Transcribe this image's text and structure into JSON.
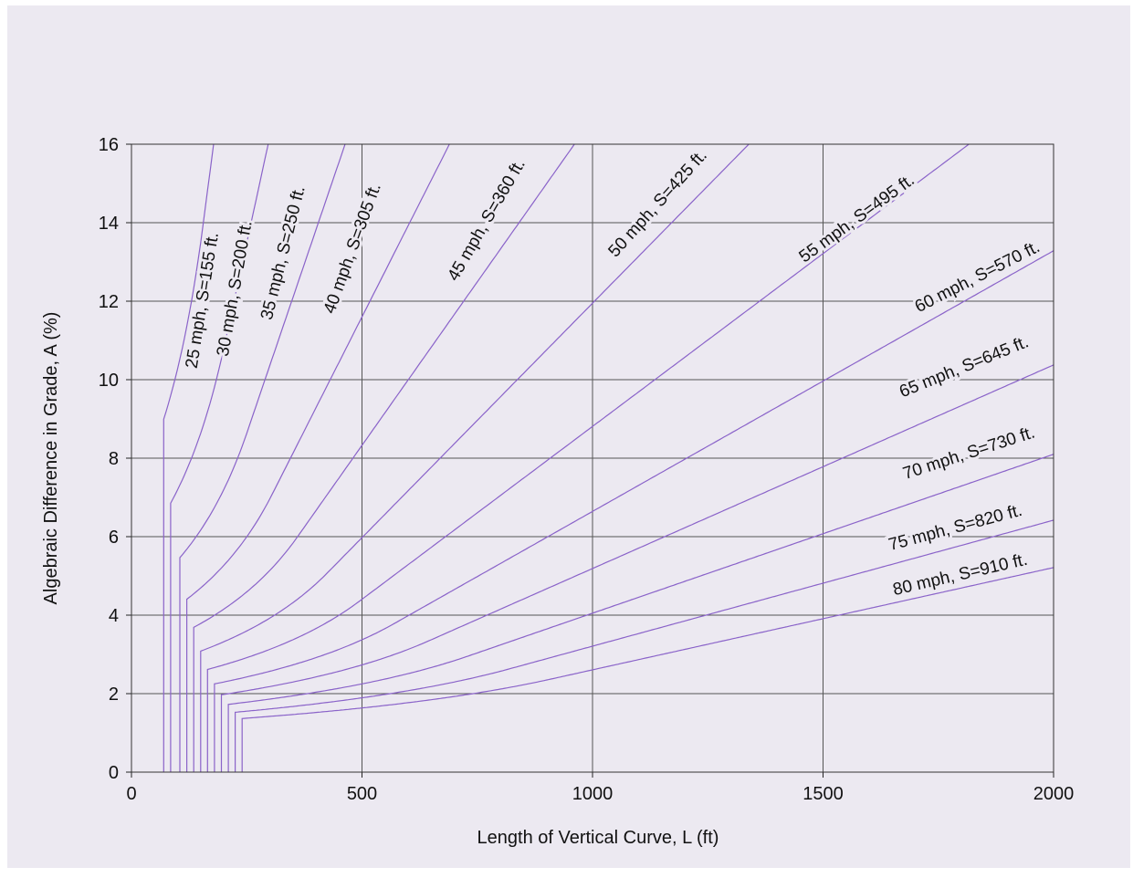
{
  "chart_data": {
    "type": "line",
    "title": "",
    "xlabel": "Length of Vertical Curve, L (ft)",
    "ylabel": "Algebraic Difference in Grade, A (%)",
    "xlim": [
      0,
      2000
    ],
    "ylim": [
      0,
      16
    ],
    "xticks": [
      0,
      500,
      1000,
      1500,
      2000
    ],
    "yticks": [
      0,
      2,
      4,
      6,
      8,
      10,
      12,
      14,
      16
    ],
    "xtick_labels": [
      "0",
      "500",
      "1000",
      "1500",
      "2000"
    ],
    "ytick_labels": [
      "0",
      "2",
      "4",
      "6",
      "8",
      "10",
      "12",
      "14",
      "16"
    ],
    "grid": true,
    "background_color": "#ece9f1",
    "line_color": "#8a63c9",
    "series": [
      {
        "name": "25 mph, S=155 ft.",
        "S": 155,
        "min_L": 70,
        "label_pos": [
          165,
          12
        ],
        "label_angle": -81
      },
      {
        "name": "30 mph, S=200 ft.",
        "S": 200,
        "min_L": 85,
        "label_pos": [
          235,
          12.3
        ],
        "label_angle": -80
      },
      {
        "name": "35 mph, S=250 ft.",
        "S": 250,
        "min_L": 105,
        "label_pos": [
          340,
          13.2
        ],
        "label_angle": -76
      },
      {
        "name": "40 mph, S=305 ft.",
        "S": 305,
        "min_L": 120,
        "label_pos": [
          490,
          13.3
        ],
        "label_angle": -70
      },
      {
        "name": "45 mph, S=360 ft.",
        "S": 360,
        "min_L": 135,
        "label_pos": [
          780,
          14
        ],
        "label_angle": -60
      },
      {
        "name": "50 mph, S=425 ft.",
        "S": 425,
        "min_L": 150,
        "label_pos": [
          1150,
          14.4
        ],
        "label_angle": -48
      },
      {
        "name": "55 mph, S=495 ft.",
        "S": 495,
        "min_L": 165,
        "label_pos": [
          1580,
          14
        ],
        "label_angle": -36
      },
      {
        "name": "60 mph, S=570 ft.",
        "S": 570,
        "min_L": 180,
        "label_pos": [
          1840,
          12.5
        ],
        "label_angle": -27
      },
      {
        "name": "65 mph, S=645 ft.",
        "S": 645,
        "min_L": 195,
        "label_pos": [
          1810,
          10.2
        ],
        "label_angle": -22
      },
      {
        "name": "70 mph, S=730 ft.",
        "S": 730,
        "min_L": 210,
        "label_pos": [
          1820,
          8
        ],
        "label_angle": -18
      },
      {
        "name": "75 mph, S=820 ft.",
        "S": 820,
        "min_L": 225,
        "label_pos": [
          1790,
          6.1
        ],
        "label_angle": -15
      },
      {
        "name": "80 mph, S=910 ft.",
        "S": 910,
        "min_L": 240,
        "label_pos": [
          1800,
          4.9
        ],
        "label_angle": -13
      }
    ]
  }
}
